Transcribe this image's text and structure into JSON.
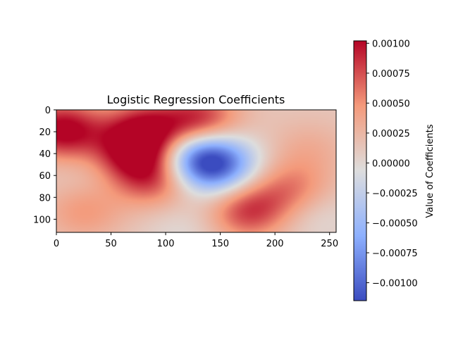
{
  "chart_data": [
    {
      "type": "heatmap",
      "title": "Logistic Regression Coefficients",
      "xlabel": "",
      "ylabel": "",
      "x_ticks": [
        "0",
        "50",
        "100",
        "150",
        "200",
        "250"
      ],
      "y_ticks": [
        "0",
        "20",
        "40",
        "60",
        "80",
        "100"
      ],
      "xlim": [
        0,
        256
      ],
      "ylim": [
        112,
        0
      ],
      "colormap": "coolwarm",
      "grid": false,
      "hotspots": [
        {
          "x": 5,
          "y": 18,
          "value": 0.00098
        },
        {
          "x": 80,
          "y": 18,
          "value": 0.0008
        },
        {
          "x": 70,
          "y": 40,
          "value": 0.00075
        },
        {
          "x": 90,
          "y": 62,
          "value": 0.00065
        },
        {
          "x": 130,
          "y": 10,
          "value": 0.0008
        },
        {
          "x": 145,
          "y": 50,
          "value": -0.00105
        },
        {
          "x": 125,
          "y": 42,
          "value": -0.0007
        },
        {
          "x": 175,
          "y": 92,
          "value": 0.0007
        },
        {
          "x": 215,
          "y": 72,
          "value": 0.00045
        },
        {
          "x": 235,
          "y": 95,
          "value": -0.00018
        },
        {
          "x": 30,
          "y": 60,
          "value": -8e-05
        },
        {
          "x": 25,
          "y": 92,
          "value": 0.00035
        },
        {
          "x": 115,
          "y": 108,
          "value": -0.00015
        },
        {
          "x": 230,
          "y": 35,
          "value": 0.0002
        }
      ],
      "colorbar": {
        "label": "Value of Coefficients",
        "min": -0.00115,
        "max": 0.00102,
        "ticks": [
          "0.00100",
          "0.00075",
          "0.00050",
          "0.00025",
          "0.00000",
          "−0.00025",
          "−0.00050",
          "−0.00075",
          "−0.00100"
        ],
        "tick_values": [
          0.001,
          0.00075,
          0.0005,
          0.00025,
          0,
          -0.00025,
          -0.0005,
          -0.00075,
          -0.001
        ]
      }
    }
  ]
}
